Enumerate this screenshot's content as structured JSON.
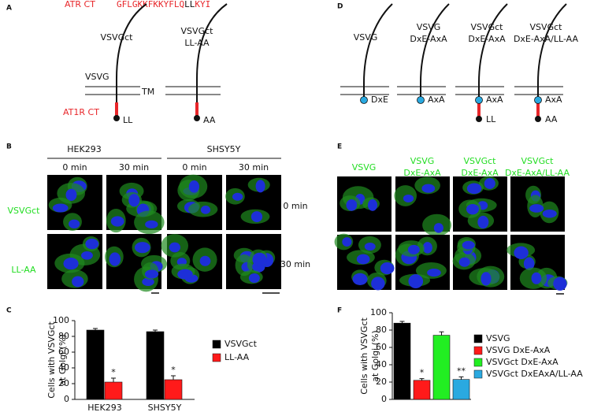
{
  "panels": {
    "A": {
      "letter": "A",
      "seq_label": "ATR CT",
      "seq_parts": [
        "GFLGKKFKKYFLQ",
        "LL",
        "KYI"
      ],
      "construct_labels": [
        [
          "VSVGct"
        ],
        [
          "VSVGct",
          "LL-AA"
        ]
      ],
      "vsvg": "VSVG",
      "tm": "TM",
      "ct": "AT1R CT",
      "ends": [
        "LL",
        "AA"
      ]
    },
    "B": {
      "letter": "B",
      "cells": [
        "HEK293",
        "SHSY5Y"
      ],
      "times": [
        "0 min",
        "30 min",
        "0 min",
        "30 min"
      ],
      "rows": [
        "VSVGct",
        "LL-AA"
      ]
    },
    "D": {
      "letter": "D",
      "construct_labels": [
        [
          "VSVG"
        ],
        [
          "VSVG",
          "DxE-AxA"
        ],
        [
          "VSVGct",
          "DxE-AxA"
        ],
        [
          "VSVGct",
          "DxE-AxA/LL-AA"
        ]
      ],
      "motifs": [
        "DxE",
        "AxA",
        "AxA",
        "AxA"
      ],
      "ends": [
        "LL",
        "AA"
      ]
    },
    "E": {
      "letter": "E",
      "columns": [
        [
          "VSVG"
        ],
        [
          "VSVG",
          "DxE-AxA"
        ],
        [
          "VSVGct",
          "DxE-AxA"
        ],
        [
          "VSVGct",
          "DxE-AxA/LL-AA"
        ]
      ],
      "rows": [
        "0 min",
        "30 min"
      ]
    }
  },
  "chart_data": [
    {
      "type": "bar",
      "panel": "C",
      "ylabel": [
        "Cells with VSVGct",
        "at Golgi (%)"
      ],
      "categories": [
        "HEK293",
        "SHSY5Y"
      ],
      "ylim": [
        0,
        100
      ],
      "yticks": [
        0,
        20,
        40,
        60,
        80,
        100
      ],
      "legend": "right",
      "series": [
        {
          "name": "VSVGct",
          "color": "#000000",
          "values": [
            88,
            86
          ],
          "errors": [
            2,
            2
          ]
        },
        {
          "name": "LL-AA",
          "color": "#ff1a1a",
          "values": [
            22,
            25
          ],
          "errors": [
            5,
            5
          ],
          "significance": [
            "*",
            "*"
          ]
        }
      ]
    },
    {
      "type": "bar",
      "panel": "F",
      "ylabel": [
        "Cells with VSVGct",
        "at Golgi (%)"
      ],
      "ylim": [
        0,
        100
      ],
      "yticks": [
        0,
        20,
        40,
        60,
        80,
        100
      ],
      "legend": "right",
      "series": [
        {
          "name": "VSVG",
          "color": "#000000",
          "values": [
            88
          ],
          "errors": [
            2
          ]
        },
        {
          "name": "VSVG DxE-AxA",
          "color": "#ff1a1a",
          "values": [
            22
          ],
          "errors": [
            2
          ],
          "significance": [
            "*"
          ]
        },
        {
          "name": "VSVGct DxE-AxA",
          "color": "#22ee22",
          "values": [
            74
          ],
          "errors": [
            4
          ]
        },
        {
          "name": "VSVGct DxEAxA/LL-AA",
          "color": "#2aa9e0",
          "values": [
            23
          ],
          "errors": [
            3
          ],
          "significance": [
            "**"
          ]
        }
      ]
    }
  ]
}
